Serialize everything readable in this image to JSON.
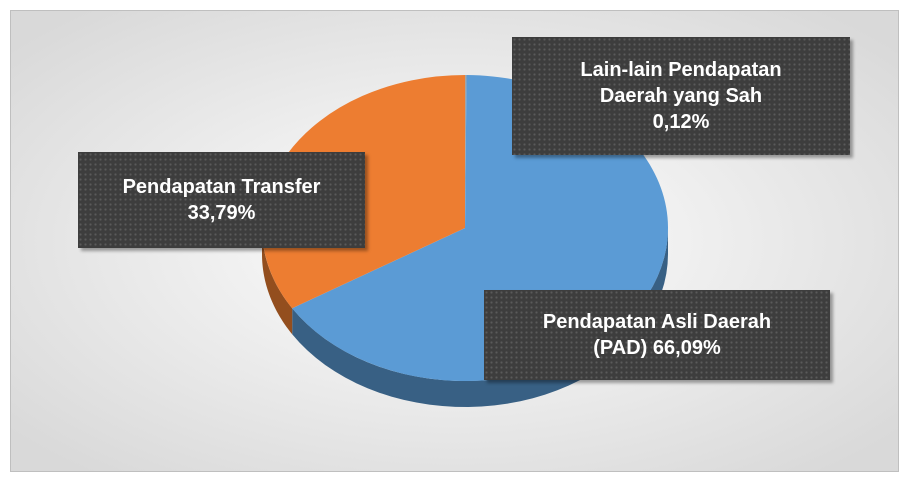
{
  "chart_data": {
    "type": "pie",
    "categories": [
      "Lain-lain Pendapatan Daerah yang Sah",
      "Pendapatan Asli Daerah (PAD)",
      "Pendapatan Transfer"
    ],
    "values": [
      0.12,
      66.09,
      33.79
    ],
    "value_labels": [
      "0,12%",
      "66,09%",
      "33,79%"
    ],
    "colors": [
      "#a5a5a5",
      "#5b9bd5",
      "#ed7d31"
    ],
    "three_d": true
  }
}
